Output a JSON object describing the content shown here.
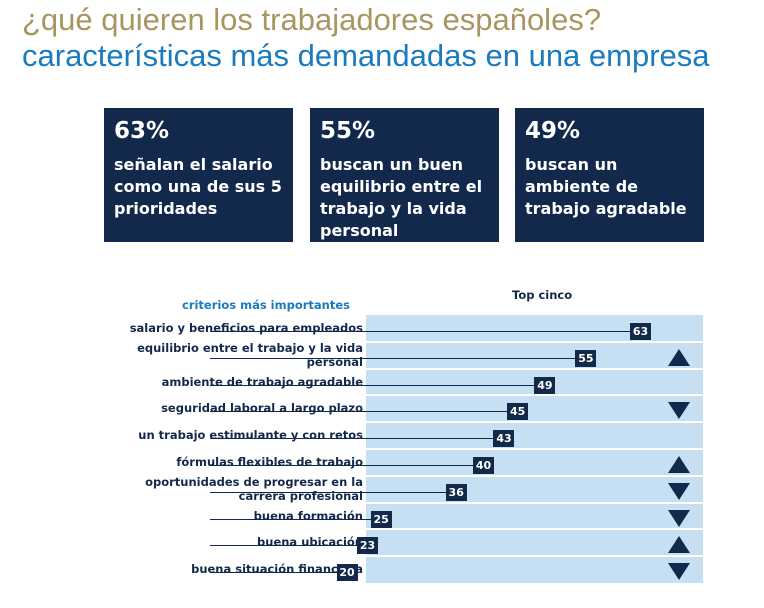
{
  "title": {
    "line1": "¿qué quieren los trabajadores españoles?",
    "line2": "características más demandadas en una empresa"
  },
  "stats": [
    {
      "value": "63%",
      "text": "señalan el salario como una de sus 5 prioridades"
    },
    {
      "value": "55%",
      "text": "buscan un buen equilibrio entre el trabajo y la vida personal"
    },
    {
      "value": "49%",
      "text": "buscan un ambiente de trabajo agradable"
    }
  ],
  "chart_data": {
    "type": "bar",
    "orientation": "horizontal",
    "title": "Top cinco",
    "category_header": "criterios más importantes",
    "xlim": [
      0,
      63
    ],
    "categories": [
      "salario y beneficios para empleados",
      "equilibrio entre el trabajo y la vida personal",
      "ambiente de trabajo agradable",
      "seguridad laboral a largo plazo",
      "un trabajo estimulante y con retos",
      "fórmulas flexibles de trabajo",
      "oportunidades de progresar en la carrera profesional",
      "buena formación",
      "buena ubicación",
      "buena situación financiera"
    ],
    "values": [
      63,
      55,
      49,
      45,
      43,
      40,
      36,
      25,
      23,
      20
    ],
    "trend": [
      "",
      "up",
      "",
      "down",
      "",
      "up",
      "down",
      "down",
      "up",
      "down"
    ]
  }
}
